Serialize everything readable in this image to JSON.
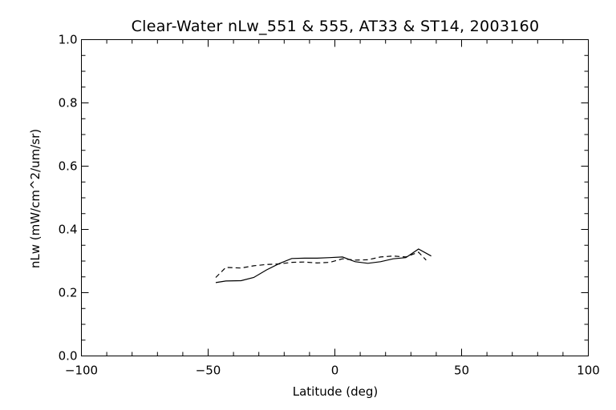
{
  "chart_data": {
    "type": "line",
    "title": "Clear-Water nLw_551 & 555, AT33 & ST14, 2003160",
    "xlabel": "Latitude (deg)",
    "ylabel": "nLw (mW/cm^2/um/sr)",
    "xlim": [
      -100,
      100
    ],
    "ylim": [
      0.0,
      1.0
    ],
    "x_ticks": [
      -100,
      -50,
      0,
      50,
      100
    ],
    "x_tick_labels": [
      "−100",
      "−50",
      "0",
      "50",
      "100"
    ],
    "y_ticks": [
      0.0,
      0.2,
      0.4,
      0.6,
      0.8,
      1.0
    ],
    "y_tick_labels": [
      "0.0",
      "0.2",
      "0.4",
      "0.6",
      "0.8",
      "1.0"
    ],
    "grid": false,
    "series": [
      {
        "style": "solid",
        "color": "#000000",
        "x": [
          -47,
          -43,
          -37,
          -32,
          -27,
          -22,
          -17,
          -12,
          -7,
          -2,
          3,
          8,
          13,
          18,
          23,
          28,
          33,
          38
        ],
        "y": [
          0.232,
          0.237,
          0.238,
          0.248,
          0.272,
          0.292,
          0.308,
          0.309,
          0.309,
          0.311,
          0.313,
          0.298,
          0.293,
          0.298,
          0.307,
          0.311,
          0.338,
          0.316
        ]
      },
      {
        "style": "dashed",
        "color": "#000000",
        "x": [
          -47,
          -43,
          -37,
          -32,
          -27,
          -22,
          -17,
          -12,
          -7,
          -2,
          3,
          8,
          13,
          18,
          23,
          28,
          33,
          36
        ],
        "y": [
          0.248,
          0.28,
          0.278,
          0.285,
          0.289,
          0.291,
          0.296,
          0.297,
          0.294,
          0.296,
          0.307,
          0.303,
          0.304,
          0.313,
          0.316,
          0.313,
          0.328,
          0.303
        ]
      }
    ]
  }
}
